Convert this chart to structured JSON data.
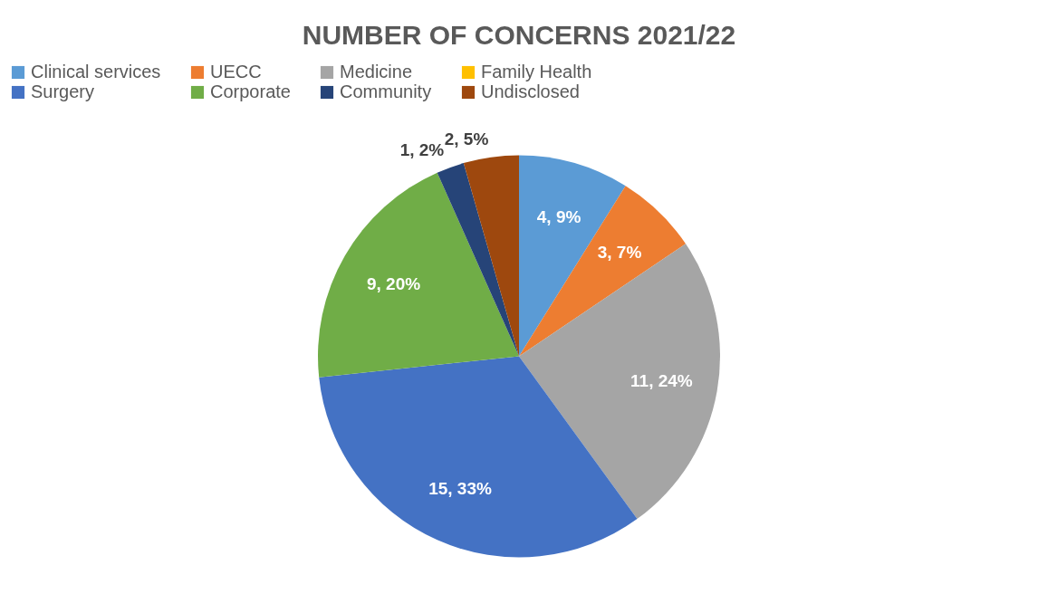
{
  "chart_data": {
    "type": "pie",
    "title": "NUMBER OF CONCERNS 2021/22",
    "categories": [
      "Clinical services",
      "UECC",
      "Medicine",
      "Family Health",
      "Surgery",
      "Corporate",
      "Community",
      "Undisclosed"
    ],
    "values": [
      4,
      3,
      11,
      0,
      15,
      9,
      1,
      2
    ],
    "colors": [
      "#5b9bd5",
      "#ed7d31",
      "#a5a5a5",
      "#ffc000",
      "#4472c4",
      "#70ad47",
      "#264478",
      "#9e480e"
    ],
    "value_labels": [
      "4, 9%",
      "3, 7%",
      "11, 24%",
      null,
      "15, 33%",
      "9, 20%",
      "1, 2%",
      "2, 5%"
    ],
    "legend": "top"
  }
}
